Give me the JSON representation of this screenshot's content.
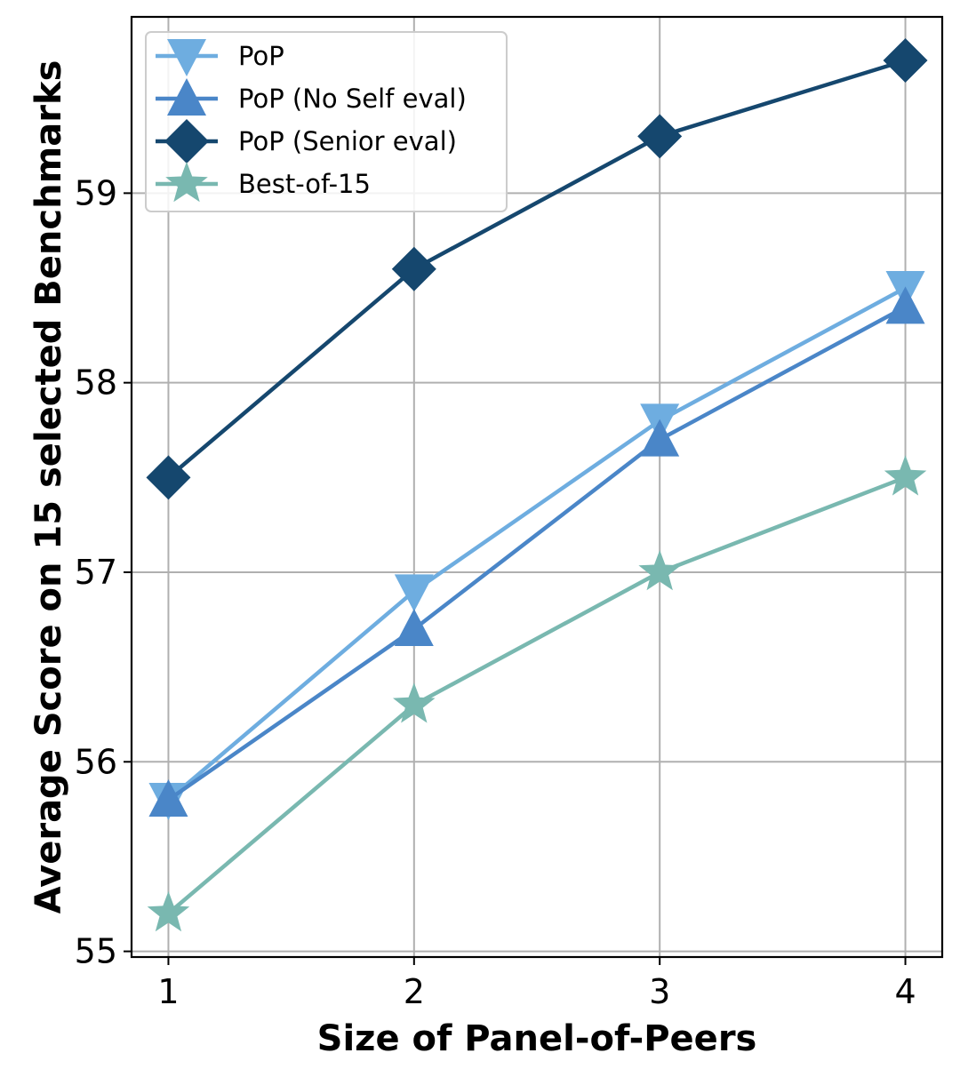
{
  "chart_data": {
    "type": "line",
    "xlabel": "Size of Panel-of-Peers",
    "ylabel": "Average Score on 15 selected Benchmarks",
    "x": [
      1,
      2,
      3,
      4
    ],
    "x_tick_labels": [
      "1",
      "2",
      "3",
      "4"
    ],
    "xlim": [
      0.85,
      4.15
    ],
    "ylim": [
      54.97,
      59.93
    ],
    "y_ticks": [
      55,
      56,
      57,
      58,
      59
    ],
    "y_tick_labels": [
      "55",
      "56",
      "57",
      "58",
      "59"
    ],
    "grid": true,
    "legend_position": "top-left",
    "series": [
      {
        "name": "PoP",
        "color": "#6EADE0",
        "marker": "triangle-down",
        "values": [
          55.8,
          56.9,
          57.8,
          58.5
        ]
      },
      {
        "name": "PoP (No Self eval)",
        "color": "#4A86C8",
        "marker": "triangle-up",
        "values": [
          55.8,
          56.7,
          57.7,
          58.4
        ]
      },
      {
        "name": "PoP (Senior eval)",
        "color": "#15476E",
        "marker": "diamond",
        "values": [
          57.5,
          58.6,
          59.3,
          59.7
        ]
      },
      {
        "name": "Best-of-15",
        "color": "#79B8B0",
        "marker": "star",
        "values": [
          55.2,
          56.3,
          57.0,
          57.5
        ]
      }
    ]
  }
}
